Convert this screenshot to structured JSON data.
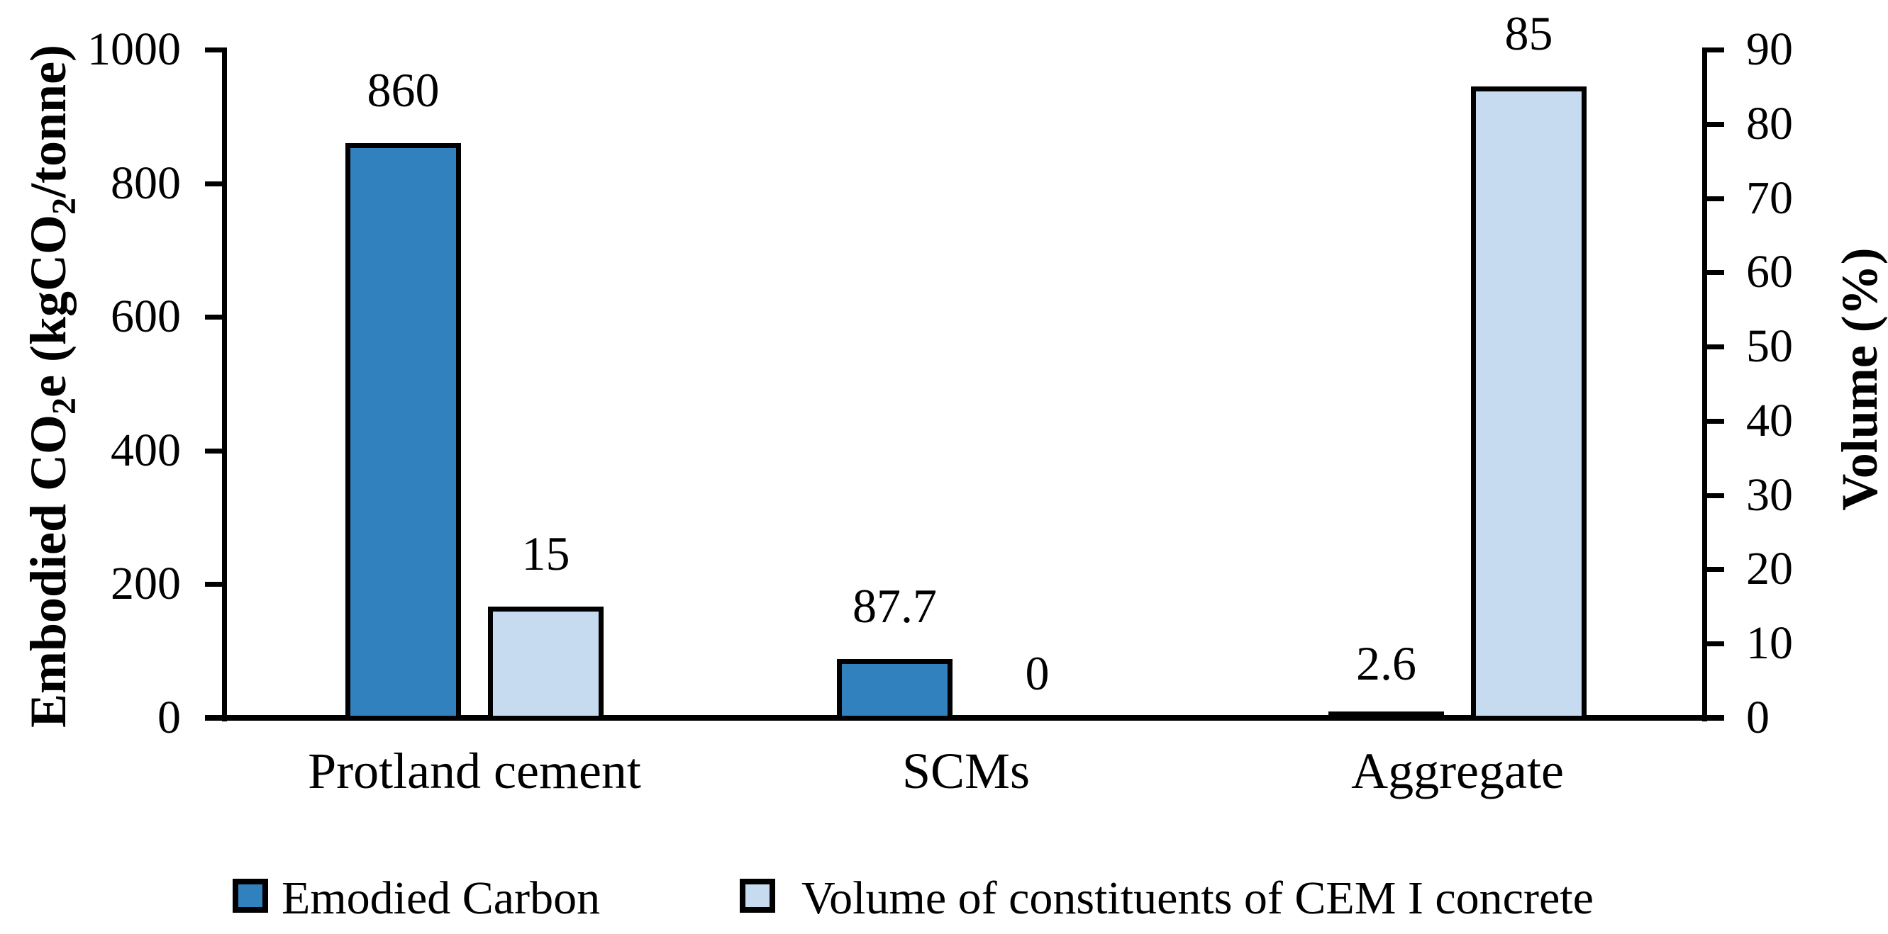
{
  "chart_data": {
    "type": "bar",
    "title": "",
    "categories": [
      "Protland cement",
      "SCMs",
      "Aggregate"
    ],
    "series": [
      {
        "name": "Emodied Carbon",
        "axis": "left",
        "color": "#3181BE",
        "values": [
          860,
          87.7,
          2.6
        ],
        "labels": [
          "860",
          "87.7",
          "2.6"
        ]
      },
      {
        "name": "Volume of constituents of CEM I concrete",
        "axis": "right",
        "color": "#C6DBEF",
        "values": [
          15,
          0,
          85
        ],
        "labels": [
          "15",
          "0",
          "85"
        ]
      }
    ],
    "left_axis": {
      "label": "Embodied CO2e (kgCO2/tonne)",
      "range": [
        0,
        1000
      ],
      "ticks": [
        0,
        200,
        400,
        600,
        800,
        1000
      ]
    },
    "right_axis": {
      "label": "Volume (%)",
      "range": [
        0,
        90
      ],
      "ticks": [
        0,
        10,
        20,
        30,
        40,
        50,
        60,
        70,
        80,
        90
      ]
    },
    "grid": false,
    "legend_position": "bottom",
    "bar_edge_color": "#000000"
  },
  "axis_titles": {
    "left_p1": "Embodied CO",
    "left_sub1": "2",
    "left_p2": "e (kgCO",
    "left_sub2": "2",
    "left_p3": "/tonne)",
    "right": "Volume (%)"
  },
  "legend": {
    "items": [
      {
        "label": "Emodied Carbon",
        "color": "#3181BE"
      },
      {
        "label": "Volume of constituents of CEM I concrete",
        "color": "#C6DBEF"
      }
    ]
  }
}
